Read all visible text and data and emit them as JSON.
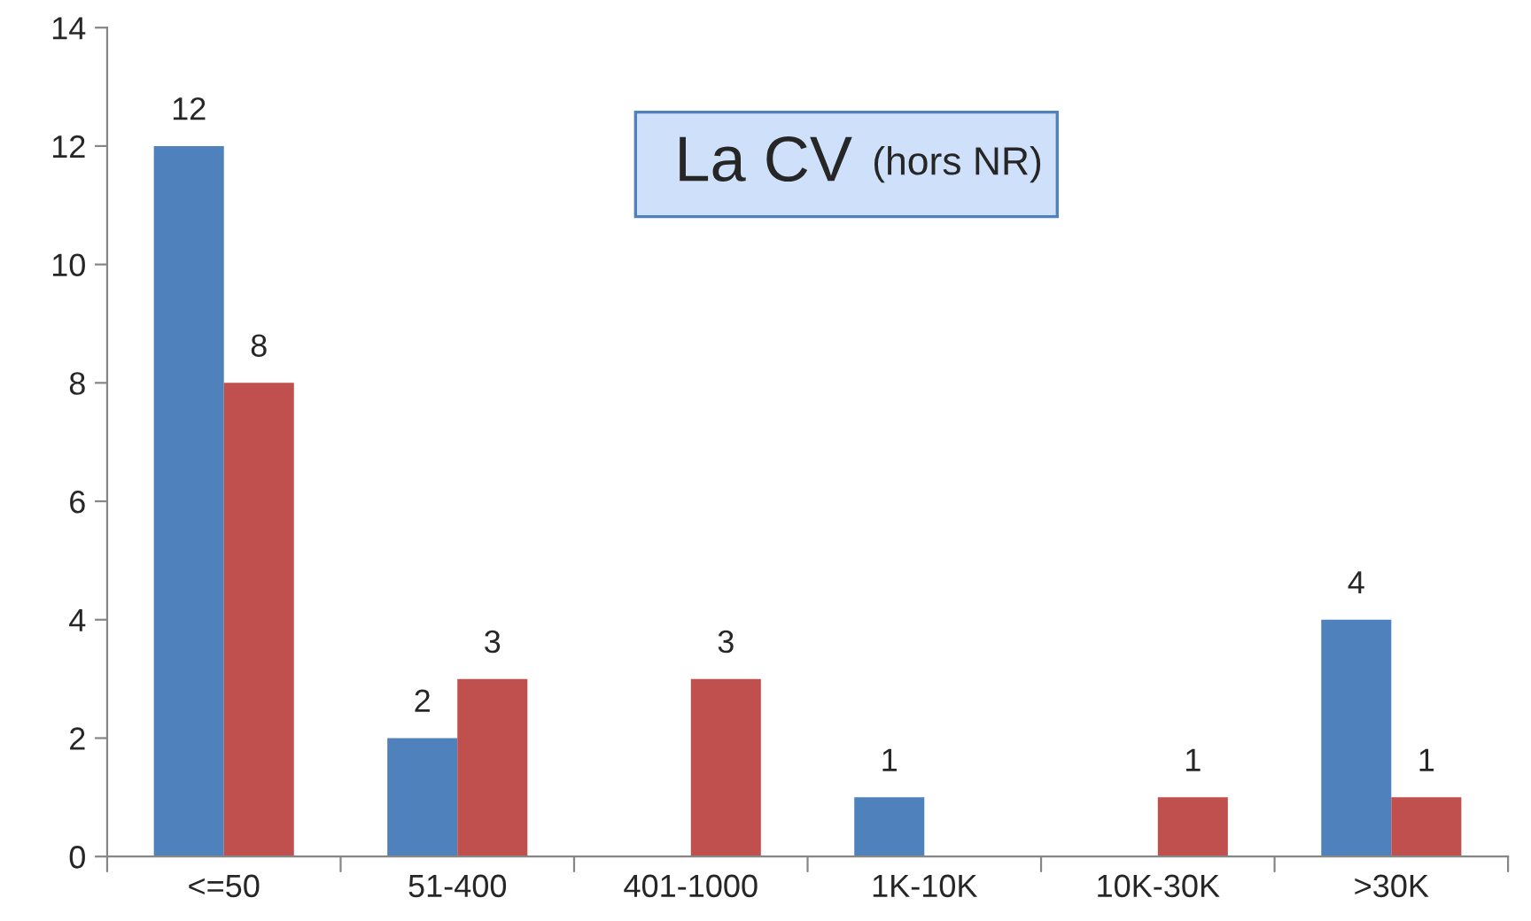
{
  "chart_data": {
    "type": "bar",
    "title": "La CV",
    "subtitle": "(hors NR)",
    "categories": [
      "<=50",
      "51-400",
      "401-1000",
      "1K-10K",
      "10K-30K",
      ">30K"
    ],
    "series": [
      {
        "color": "#4f81bd",
        "values": [
          12,
          2,
          0,
          1,
          0,
          4
        ],
        "value_labels": [
          "12",
          "2",
          null,
          "1",
          null,
          "4"
        ]
      },
      {
        "color": "#c0504d",
        "values": [
          8,
          3,
          3,
          0,
          1,
          1
        ],
        "value_labels": [
          "8",
          "3",
          "3",
          null,
          "1",
          "1"
        ]
      }
    ],
    "ylim": [
      0,
      14
    ],
    "yticks": [
      0,
      2,
      4,
      6,
      8,
      10,
      12,
      14
    ],
    "grid": false,
    "legend": false
  }
}
